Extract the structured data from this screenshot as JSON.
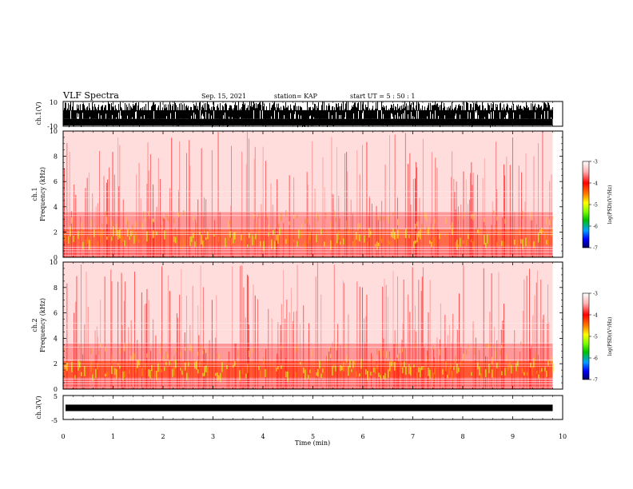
{
  "header": {
    "title": "VLF Spectra",
    "date": "Sep. 15, 2021",
    "station": "station= KAP",
    "start": "start  UT =  5 : 50 : 1"
  },
  "colors": {
    "spec_low": "#ffd0d0",
    "spec_mid": "#ff1a1a",
    "spec_high": "#ff7a00",
    "spec_peak": "#ffe000",
    "spec_max": "#a0ff00",
    "trace": "#000000"
  },
  "chart_data": [
    {
      "type": "line",
      "ylabel": "ch.1(V)",
      "ylim": [
        -10,
        10
      ],
      "yticks": [
        "10",
        "-10"
      ],
      "xlim": [
        0,
        10
      ],
      "description_values": {
        "x": [
          0,
          9.8
        ],
        "y_envelope": [
          -10,
          10
        ]
      }
    },
    {
      "type": "heatmap",
      "ylabel": "ch.1\nFrequency (kHz)",
      "ylabel_top": "ch.1",
      "ylabel_bottom": "Frequency (kHz)",
      "ylim": [
        0,
        10
      ],
      "yticks": [
        "0",
        "2",
        "4",
        "6",
        "8",
        "10"
      ],
      "xlim": [
        0,
        10
      ],
      "data_end_x": 9.8,
      "colorbar": {
        "label": "log(PSD)(V²/Hz)",
        "range": [
          -7,
          -3
        ],
        "ticks": [
          "-3",
          "-4",
          "-5",
          "-6",
          "-7"
        ]
      }
    },
    {
      "type": "heatmap",
      "ylabel_top": "ch.2",
      "ylabel_bottom": "Frequency (kHz)",
      "ylim": [
        0,
        10
      ],
      "yticks": [
        "0",
        "2",
        "4",
        "6",
        "8",
        "10"
      ],
      "xlim": [
        0,
        10
      ],
      "data_end_x": 9.8,
      "colorbar": {
        "label": "log(PSD)(V²/Hz)",
        "range": [
          -7,
          -3
        ],
        "ticks": [
          "-3",
          "-4",
          "-5",
          "-6",
          "-7"
        ]
      }
    },
    {
      "type": "line",
      "ylabel": "ch.3(V)",
      "ylim": [
        -5,
        5
      ],
      "yticks": [
        "5",
        "-5"
      ],
      "xlim": [
        0,
        10
      ],
      "xticks": [
        "0",
        "1",
        "2",
        "3",
        "4",
        "5",
        "6",
        "7",
        "8",
        "9",
        "10"
      ],
      "xlabel": "Time (min)"
    }
  ]
}
